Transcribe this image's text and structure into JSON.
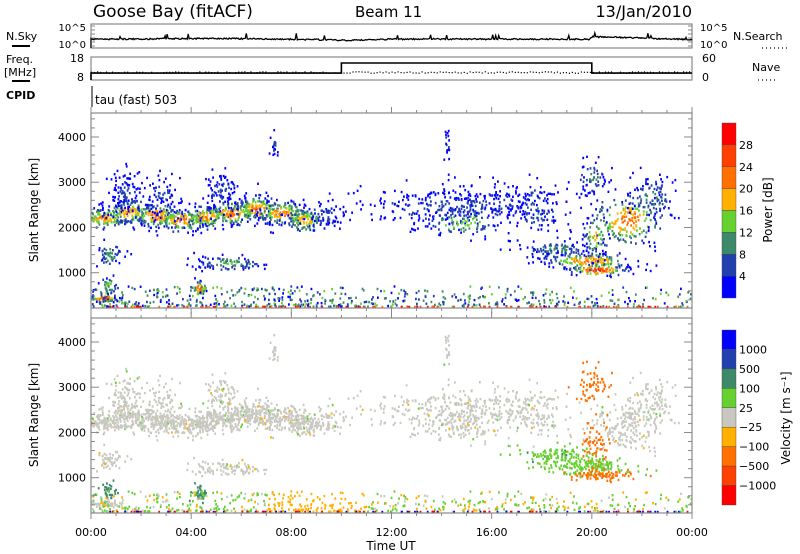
{
  "header": {
    "station": "Goose Bay (fitACF)",
    "beam": "Beam 11",
    "date": "13/Jan/2010"
  },
  "noise_panel": {
    "left_label": "N.Sky",
    "right_label": "N.Search",
    "tick_top": "10^5",
    "tick_bottom": "10^0",
    "series_log10": [
      [
        0,
        1.7
      ],
      [
        2,
        1.75
      ],
      [
        5,
        1.9
      ],
      [
        9,
        1.6
      ],
      [
        10,
        1.4
      ],
      [
        12,
        1.7
      ],
      [
        14,
        1.75
      ],
      [
        19.9,
        1.7
      ],
      [
        20,
        2.3
      ],
      [
        21.5,
        2.1
      ],
      [
        24,
        1.6
      ]
    ]
  },
  "freq_panel": {
    "left_label_1": "Freq.",
    "left_label_2": "[MHz]",
    "right_label": "Nave",
    "left_ticks": [
      "18",
      "8"
    ],
    "right_ticks": [
      "60",
      "0"
    ],
    "freq_mhz": [
      [
        0,
        11
      ],
      [
        10,
        11
      ],
      [
        10,
        15.4
      ],
      [
        20,
        15.4
      ],
      [
        20,
        11
      ],
      [
        24,
        11
      ]
    ],
    "nave": 21
  },
  "cpid": {
    "label": "CPID",
    "value": "tau (fast) 503"
  },
  "colors": {
    "power": [
      "#0000ff",
      "#2040b0",
      "#3d8a6a",
      "#66d030",
      "#ffb000",
      "#ff7000",
      "#ff4000",
      "#ff0000"
    ],
    "velocity": [
      "#0000ff",
      "#2040b0",
      "#3d8a6a",
      "#66d030",
      "#c8c8c0",
      "#ffb000",
      "#ff7000",
      "#ff4000",
      "#ff0000"
    ],
    "axis": "#888888"
  },
  "chart_data": [
    {
      "type": "heatmap",
      "title": "Power",
      "xlabel": "Time UT",
      "ylabel": "Slant Range [km]",
      "xlim_hours": [
        0,
        24
      ],
      "ylim": [
        220,
        4530
      ],
      "x_tick_labels": [
        "00:00",
        "04:00",
        "08:00",
        "12:00",
        "16:00",
        "20:00",
        "00:00"
      ],
      "y_tick_labels": [
        "1000",
        "2000",
        "3000",
        "4000"
      ],
      "colorbar": {
        "label": "Power [dB]",
        "tick_labels": [
          "28",
          "24",
          "20",
          "16",
          "12",
          "8",
          "4"
        ],
        "bins": [
          0,
          4,
          8,
          12,
          16,
          20,
          24,
          28,
          32
        ]
      },
      "echo_regions": [
        {
          "t": 0.5,
          "r": 2200,
          "st": 0.5,
          "sr": 130,
          "n": 130,
          "p": 20,
          "v": 0
        },
        {
          "t": 1.5,
          "r": 2330,
          "st": 0.5,
          "sr": 140,
          "n": 130,
          "p": 20,
          "v": 5
        },
        {
          "t": 2.6,
          "r": 2250,
          "st": 0.5,
          "sr": 140,
          "n": 130,
          "p": 22,
          "v": -5
        },
        {
          "t": 3.6,
          "r": 2150,
          "st": 0.5,
          "sr": 130,
          "n": 130,
          "p": 22,
          "v": 0
        },
        {
          "t": 4.6,
          "r": 2230,
          "st": 0.5,
          "sr": 140,
          "n": 130,
          "p": 21,
          "v": 0
        },
        {
          "t": 5.6,
          "r": 2300,
          "st": 0.5,
          "sr": 140,
          "n": 130,
          "p": 22,
          "v": 5
        },
        {
          "t": 6.6,
          "r": 2400,
          "st": 0.5,
          "sr": 140,
          "n": 130,
          "p": 22,
          "v": 0
        },
        {
          "t": 7.6,
          "r": 2300,
          "st": 0.5,
          "sr": 140,
          "n": 130,
          "p": 22,
          "v": -5
        },
        {
          "t": 8.5,
          "r": 2150,
          "st": 0.4,
          "sr": 140,
          "n": 110,
          "p": 20,
          "v": 0
        },
        {
          "t": 9.3,
          "r": 2250,
          "st": 0.4,
          "sr": 160,
          "n": 60,
          "p": 6,
          "v": 0
        },
        {
          "t": 1.3,
          "r": 2750,
          "st": 0.35,
          "sr": 230,
          "n": 90,
          "p": 6,
          "v": 0
        },
        {
          "t": 2.8,
          "r": 2700,
          "st": 0.3,
          "sr": 230,
          "n": 60,
          "p": 6,
          "v": 0
        },
        {
          "t": 5.2,
          "r": 2800,
          "st": 0.35,
          "sr": 220,
          "n": 80,
          "p": 6,
          "v": 0
        },
        {
          "t": 0.7,
          "r": 1400,
          "st": 0.25,
          "sr": 140,
          "n": 50,
          "p": 12,
          "v": 0
        },
        {
          "t": 0.7,
          "r": 700,
          "st": 0.2,
          "sr": 100,
          "n": 35,
          "p": 16,
          "v": 120
        },
        {
          "t": 0.5,
          "r": 420,
          "st": 0.3,
          "sr": 40,
          "n": 60,
          "p": 29,
          "v": 0
        },
        {
          "t": 4.3,
          "r": 650,
          "st": 0.2,
          "sr": 80,
          "n": 35,
          "p": 26,
          "v": 150
        },
        {
          "t": 5.5,
          "r": 1200,
          "st": 0.7,
          "sr": 90,
          "n": 90,
          "p": 12,
          "v": 0
        },
        {
          "t": 7.3,
          "r": 3800,
          "st": 0.08,
          "sr": 180,
          "n": 18,
          "p": 4,
          "v": 0
        },
        {
          "t": 14.8,
          "r": 2450,
          "st": 2.0,
          "sr": 230,
          "n": 380,
          "p": 6,
          "v": 0
        },
        {
          "t": 14.8,
          "r": 2100,
          "st": 0.9,
          "sr": 180,
          "n": 90,
          "p": 14,
          "v": 0
        },
        {
          "t": 17.8,
          "r": 2400,
          "st": 0.5,
          "sr": 300,
          "n": 80,
          "p": 8,
          "v": 0
        },
        {
          "t": 18.6,
          "r": 1500,
          "st": 0.8,
          "sr": 100,
          "n": 110,
          "p": 10,
          "v": 80
        },
        {
          "t": 19.8,
          "r": 1250,
          "st": 0.9,
          "sr": 100,
          "n": 160,
          "p": 22,
          "v": 60
        },
        {
          "t": 20.2,
          "r": 1050,
          "st": 0.6,
          "sr": 70,
          "n": 80,
          "p": 28,
          "v": -150
        },
        {
          "t": 21.4,
          "r": 2150,
          "st": 0.8,
          "sr": 300,
          "n": 190,
          "p": 22,
          "v": 0
        },
        {
          "t": 22.3,
          "r": 2650,
          "st": 0.5,
          "sr": 240,
          "n": 100,
          "p": 10,
          "v": 0
        },
        {
          "t": 20.1,
          "r": 1800,
          "st": 0.25,
          "sr": 250,
          "n": 60,
          "p": 18,
          "v": -300
        },
        {
          "t": 20.0,
          "r": 3100,
          "st": 0.3,
          "sr": 250,
          "n": 60,
          "p": 8,
          "v": -400
        },
        {
          "t": 14.2,
          "r": 3700,
          "st": 0.08,
          "sr": 300,
          "n": 18,
          "p": 4,
          "v": 0
        }
      ]
    },
    {
      "type": "heatmap",
      "title": "Velocity",
      "xlabel": "Time UT",
      "ylabel": "Slant Range [km]",
      "xlim_hours": [
        0,
        24
      ],
      "ylim": [
        220,
        4530
      ],
      "x_tick_labels": [
        "00:00",
        "04:00",
        "08:00",
        "12:00",
        "16:00",
        "20:00",
        "00:00"
      ],
      "y_tick_labels": [
        "1000",
        "2000",
        "3000",
        "4000"
      ],
      "colorbar": {
        "label": "Velocity [m s⁻¹]",
        "tick_labels": [
          "1000",
          "500",
          "100",
          "25",
          "−25",
          "−100",
          "−500",
          "−1000"
        ],
        "bins": [
          2000,
          1000,
          500,
          100,
          25,
          -25,
          -100,
          -500,
          -1000,
          -2000
        ]
      }
    }
  ]
}
